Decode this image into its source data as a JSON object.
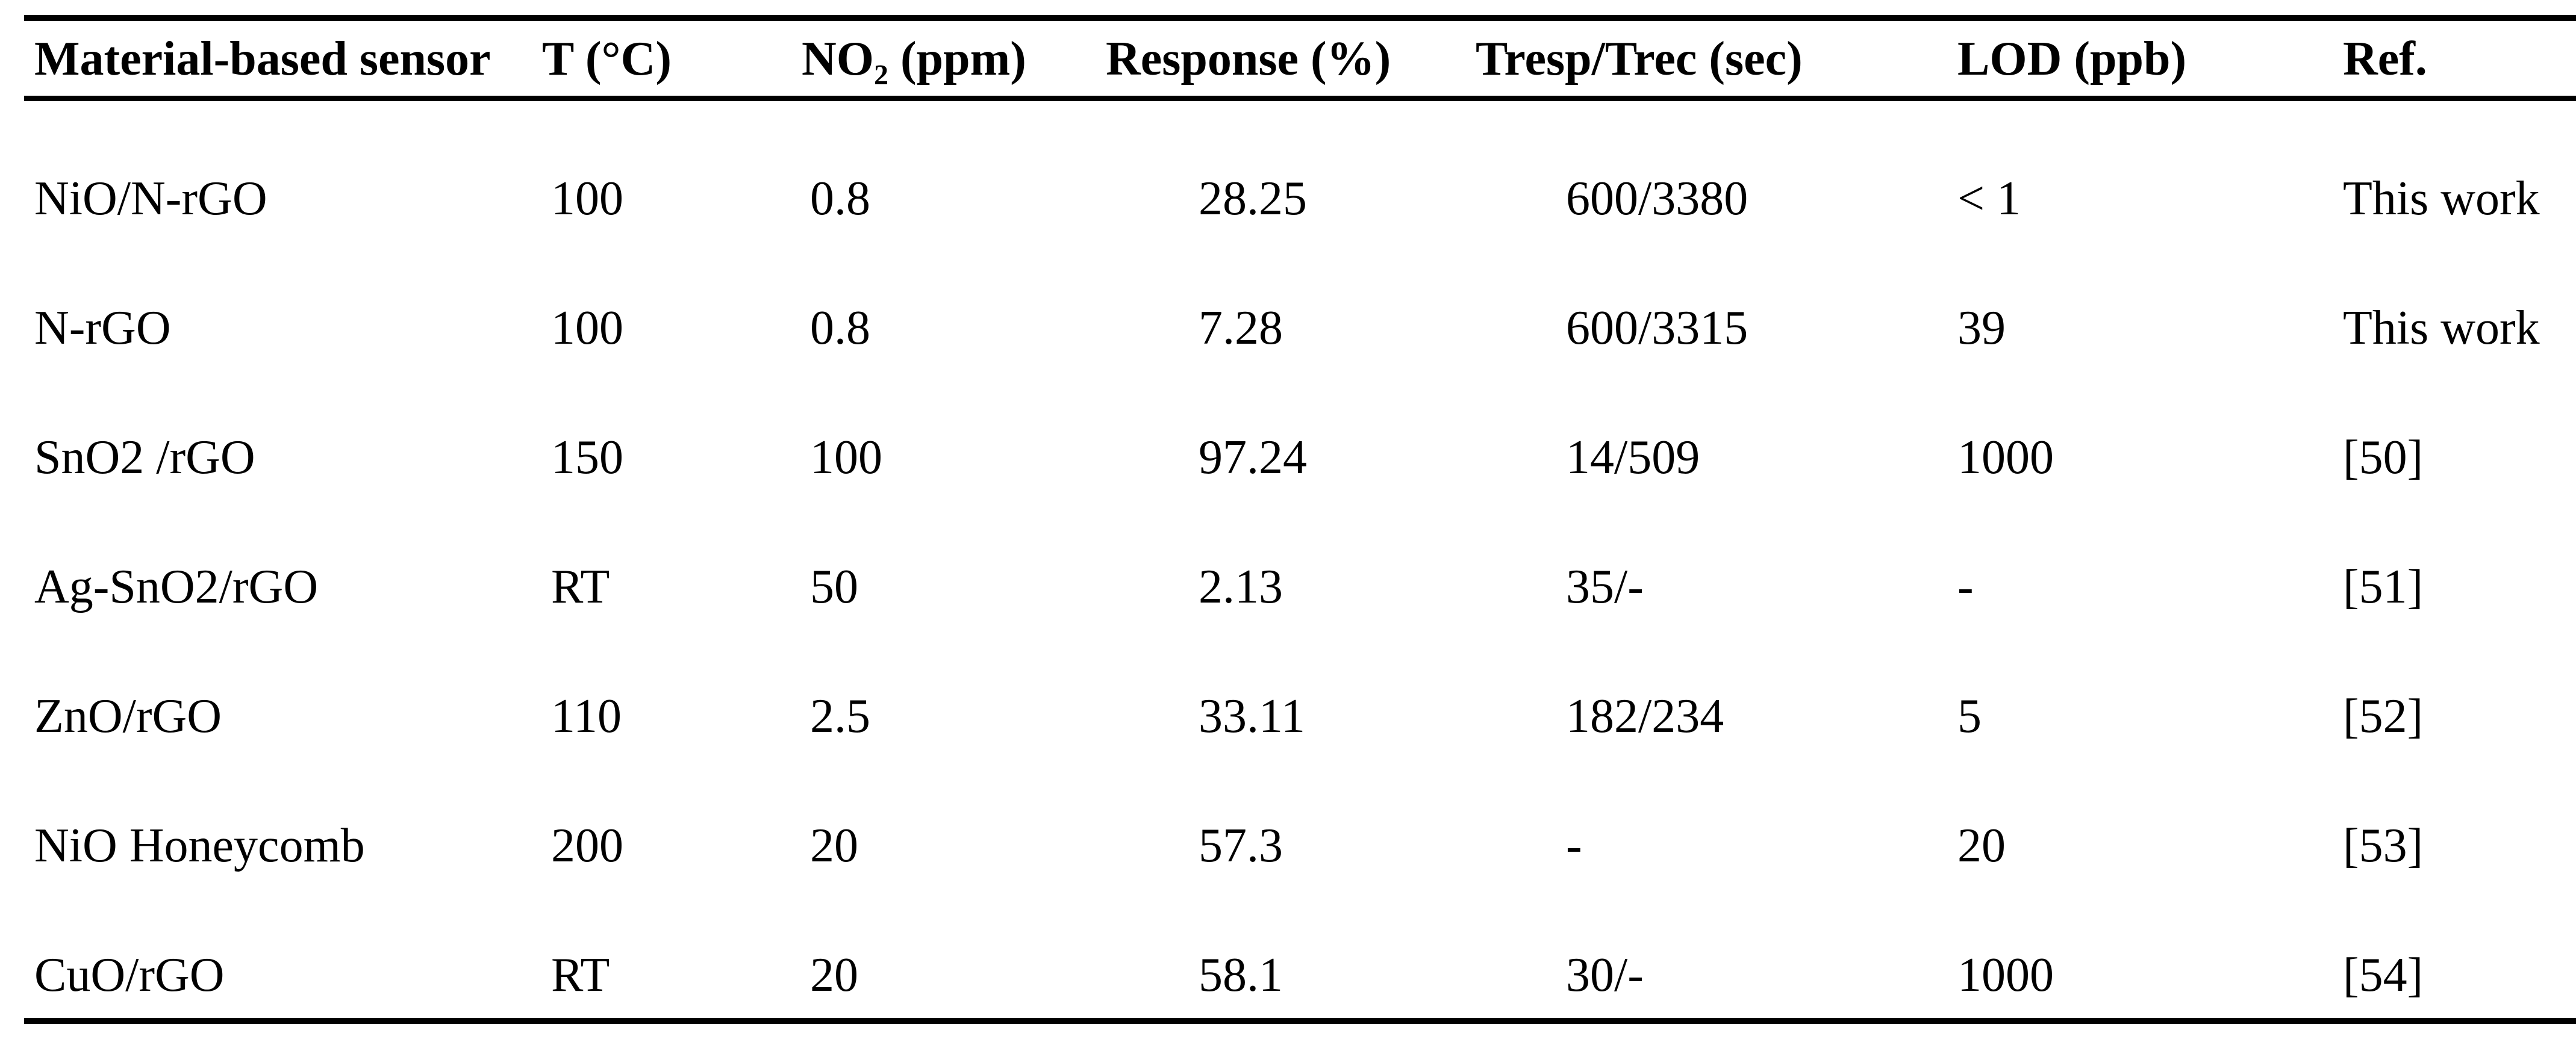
{
  "table": {
    "columns": [
      {
        "label": "Material-based sensor"
      },
      {
        "label": "T (°C)"
      },
      {
        "label": "NO₂ (ppm)"
      },
      {
        "label": "Response (%)"
      },
      {
        "label": "Tresp/Trec (sec)"
      },
      {
        "label": "LOD (ppb)"
      },
      {
        "label": "Ref."
      }
    ],
    "rows": [
      [
        "NiO/N-rGO",
        "100",
        "0.8",
        "28.25",
        "600/3380",
        "< 1",
        "This work"
      ],
      [
        "N-rGO",
        "100",
        "0.8",
        "7.28",
        "600/3315",
        "39",
        "This work"
      ],
      [
        "SnO2 /rGO",
        "150",
        "100",
        "97.24",
        "14/509",
        "1000",
        "[50]"
      ],
      [
        "Ag-SnO2/rGO",
        "RT",
        "50",
        "2.13",
        "35/-",
        "-",
        "[51]"
      ],
      [
        "ZnO/rGO",
        "110",
        "2.5",
        "33.11",
        "182/234",
        "5",
        "[52]"
      ],
      [
        "NiO Honeycomb",
        "200",
        "20",
        "57.3",
        "-",
        "20",
        "[53]"
      ],
      [
        "CuO/rGO",
        "RT",
        "20",
        "58.1",
        "30/-",
        "1000",
        "[54]"
      ]
    ]
  },
  "colors": {
    "text": "#000000",
    "background": "#ffffff",
    "rule": "#000000"
  }
}
